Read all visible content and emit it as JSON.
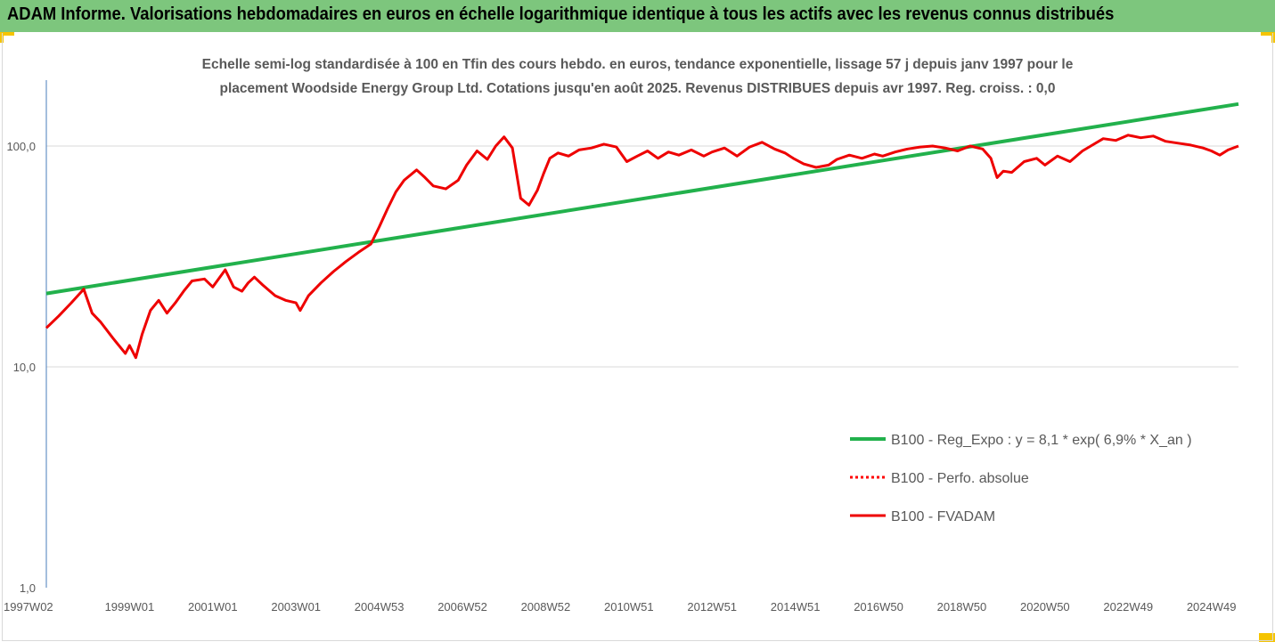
{
  "header": {
    "title": "ADAM Informe. Valorisations hebdomadaires en euros en échelle logarithmique identique à tous les actifs avec les revenus connus distribués"
  },
  "colors": {
    "header_bg": "#7dc67d",
    "corner_accent": "#f5c400",
    "regression": "#22b14c",
    "performance": "#ff0000",
    "fvadam": "#ee0000",
    "text": "#595959"
  },
  "chart_data": {
    "type": "line",
    "title_line1": "Echelle semi-log standardisée à 100 en Tfin des cours hebdo. en euros, tendance exponentielle, lissage 57 j depuis janv 1997 pour le",
    "title_line2": "placement Woodside Energy Group Ltd. Cotations jusqu'en août 2025. Revenus DISTRIBUES depuis avr 1997. Reg. croiss. : 0,0",
    "y_scale": "log",
    "ylim": [
      1,
      200
    ],
    "y_ticks": [
      1,
      10,
      100
    ],
    "y_tick_labels": [
      "1,0",
      "10,0",
      "100,0"
    ],
    "x_tick_labels": [
      "1997W02",
      "1999W01",
      "2001W01",
      "2003W01",
      "2004W53",
      "2006W52",
      "2008W52",
      "2010W51",
      "2012W51",
      "2014W51",
      "2016W50",
      "2018W50",
      "2020W50",
      "2022W49",
      "2024W49"
    ],
    "x_tick_years": [
      1997.0,
      1999.0,
      2001.0,
      2003.0,
      2005.0,
      2007.0,
      2009.0,
      2011.0,
      2013.0,
      2015.0,
      2017.0,
      2019.0,
      2021.0,
      2023.0,
      2025.0
    ],
    "xlim": [
      1997.0,
      2025.65
    ],
    "grid": "horizontal",
    "legend_position": "bottom-right",
    "series": [
      {
        "name": "B100 - Reg_Expo : y = 8,1 * exp( 6,9% *  X_an )",
        "style": "solid",
        "color": "#22b14c",
        "x": [
          1997.0,
          2025.65
        ],
        "values": [
          21.5,
          155
        ]
      },
      {
        "name": "B100 - Perfo. absolue",
        "style": "dotted",
        "color": "#ff0000",
        "x": [],
        "values": []
      },
      {
        "name": "B100 - FVADAM",
        "style": "solid",
        "color": "#ee0000",
        "x": [
          1997.0,
          1997.3,
          1997.6,
          1997.9,
          1998.1,
          1998.3,
          1998.6,
          1998.9,
          1999.0,
          1999.15,
          1999.3,
          1999.5,
          1999.7,
          1999.9,
          2000.1,
          2000.3,
          2000.5,
          2000.8,
          2001.0,
          2001.3,
          2001.5,
          2001.7,
          2001.85,
          2002.0,
          2002.2,
          2002.5,
          2002.75,
          2003.0,
          2003.1,
          2003.3,
          2003.6,
          2003.9,
          2004.2,
          2004.5,
          2004.8,
          2005.0,
          2005.2,
          2005.4,
          2005.6,
          2005.9,
          2006.1,
          2006.3,
          2006.6,
          2006.9,
          2007.1,
          2007.35,
          2007.6,
          2007.8,
          2008.0,
          2008.2,
          2008.4,
          2008.6,
          2008.8,
          2008.95,
          2009.1,
          2009.3,
          2009.55,
          2009.8,
          2010.1,
          2010.4,
          2010.7,
          2010.95,
          2011.2,
          2011.45,
          2011.7,
          2011.95,
          2012.2,
          2012.5,
          2012.8,
          2013.0,
          2013.3,
          2013.6,
          2013.9,
          2014.2,
          2014.5,
          2014.75,
          2014.95,
          2015.2,
          2015.5,
          2015.8,
          2016.0,
          2016.3,
          2016.6,
          2016.9,
          2017.1,
          2017.4,
          2017.7,
          2018.0,
          2018.3,
          2018.6,
          2018.9,
          2019.2,
          2019.5,
          2019.7,
          2019.85,
          2020.0,
          2020.2,
          2020.5,
          2020.8,
          2021.0,
          2021.3,
          2021.6,
          2021.9,
          2022.1,
          2022.4,
          2022.7,
          2023.0,
          2023.3,
          2023.6,
          2023.9,
          2024.2,
          2024.5,
          2024.8,
          2025.0,
          2025.2,
          2025.4,
          2025.65
        ],
        "values": [
          15.0,
          17.0,
          19.5,
          22.5,
          17.5,
          16.0,
          13.5,
          11.5,
          12.5,
          11.0,
          14.0,
          18.0,
          20.0,
          17.5,
          19.5,
          22.0,
          24.5,
          25.0,
          23.0,
          27.5,
          23.0,
          22.0,
          24.0,
          25.5,
          23.5,
          21.0,
          20.0,
          19.5,
          18.0,
          21.0,
          24.0,
          27.0,
          30.0,
          33.0,
          36.0,
          43.0,
          52.0,
          62.0,
          70.0,
          78.0,
          72.0,
          66.0,
          64.0,
          70.0,
          82.0,
          95.0,
          87.0,
          100.0,
          110.0,
          98.0,
          58.0,
          54.0,
          63.0,
          75.0,
          88.0,
          93.0,
          90.0,
          96.0,
          98.0,
          102.0,
          99.0,
          85.0,
          90.0,
          95.0,
          88.0,
          94.0,
          91.0,
          96.0,
          90.0,
          94.0,
          98.0,
          90.0,
          99.0,
          104.0,
          97.0,
          93.0,
          88.0,
          83.0,
          80.0,
          82.0,
          87.0,
          91.0,
          88.0,
          92.0,
          90.0,
          94.0,
          97.0,
          99.0,
          100.0,
          98.0,
          95.0,
          100.0,
          97.0,
          88.0,
          72.0,
          77.0,
          76.0,
          85.0,
          88.0,
          82.0,
          90.0,
          85.0,
          95.0,
          100.0,
          108.0,
          106.0,
          112.0,
          109.0,
          111.0,
          105.0,
          103.0,
          101.0,
          98.0,
          95.0,
          91.0,
          96.0,
          100.0
        ]
      }
    ]
  }
}
